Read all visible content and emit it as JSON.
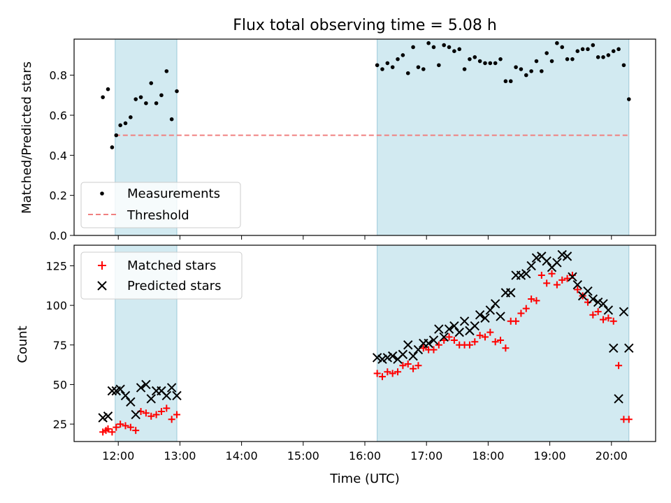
{
  "chart_data": [
    {
      "type": "scatter",
      "title": "Flux total observing time = 5.08 h",
      "xlabel": "",
      "ylabel": "Matched/Predicted stars",
      "ylim": [
        0.0,
        0.98
      ],
      "yticks": [
        0.0,
        0.2,
        0.4,
        0.6,
        0.8
      ],
      "ytick_labels": [
        "0.0",
        "0.2",
        "0.4",
        "0.6",
        "0.8"
      ],
      "xlim": [
        "11:17",
        "20:43"
      ],
      "shaded_regions": [
        [
          "11:57",
          "12:57"
        ],
        [
          "16:12",
          "20:17"
        ]
      ],
      "shade_color": "#add8e6",
      "threshold": 0.5,
      "legend": {
        "placement": "lower-left"
      },
      "series": [
        {
          "name": "Measurements",
          "marker": "dot",
          "color": "#000000",
          "x": [
            "11:45",
            "11:50",
            "11:54",
            "11:58",
            "12:02",
            "12:07",
            "12:12",
            "12:17",
            "12:22",
            "12:27",
            "12:32",
            "12:37",
            "12:42",
            "12:47",
            "12:52",
            "12:57",
            "16:12",
            "16:17",
            "16:22",
            "16:27",
            "16:32",
            "16:37",
            "16:42",
            "16:47",
            "16:52",
            "16:57",
            "17:02",
            "17:07",
            "17:12",
            "17:17",
            "17:22",
            "17:27",
            "17:32",
            "17:37",
            "17:42",
            "17:47",
            "17:52",
            "17:57",
            "18:02",
            "18:07",
            "18:12",
            "18:17",
            "18:22",
            "18:27",
            "18:32",
            "18:37",
            "18:42",
            "18:47",
            "18:52",
            "18:57",
            "19:02",
            "19:07",
            "19:12",
            "19:17",
            "19:22",
            "19:27",
            "19:32",
            "19:37",
            "19:42",
            "19:47",
            "19:52",
            "19:57",
            "20:02",
            "20:07",
            "20:12",
            "20:17"
          ],
          "y": [
            0.69,
            0.73,
            0.44,
            0.5,
            0.55,
            0.56,
            0.59,
            0.68,
            0.69,
            0.66,
            0.76,
            0.66,
            0.7,
            0.82,
            0.58,
            0.72,
            0.85,
            0.83,
            0.86,
            0.84,
            0.88,
            0.9,
            0.81,
            0.94,
            0.84,
            0.83,
            0.96,
            0.94,
            0.85,
            0.95,
            0.94,
            0.92,
            0.93,
            0.83,
            0.88,
            0.89,
            0.87,
            0.86,
            0.86,
            0.86,
            0.88,
            0.77,
            0.77,
            0.84,
            0.83,
            0.8,
            0.82,
            0.87,
            0.82,
            0.91,
            0.87,
            0.96,
            0.94,
            0.88,
            0.88,
            0.92,
            0.93,
            0.93,
            0.95,
            0.89,
            0.89,
            0.9,
            0.92,
            0.93,
            0.85,
            0.68
          ]
        },
        {
          "name": "Threshold",
          "style": "dashed",
          "color": "#f08080",
          "x": [
            "11:57",
            "20:17"
          ],
          "y": [
            0.5,
            0.5
          ]
        }
      ]
    },
    {
      "type": "scatter",
      "title": "",
      "xlabel": "Time (UTC)",
      "ylabel": "Count",
      "ylim": [
        14,
        138
      ],
      "yticks": [
        25,
        50,
        75,
        100,
        125
      ],
      "ytick_labels": [
        "25",
        "50",
        "75",
        "100",
        "125"
      ],
      "xlim": [
        "11:17",
        "20:43"
      ],
      "xticks": [
        "12:00",
        "13:00",
        "14:00",
        "15:00",
        "16:00",
        "17:00",
        "18:00",
        "19:00",
        "20:00"
      ],
      "shaded_regions": [
        [
          "11:57",
          "12:57"
        ],
        [
          "16:12",
          "20:17"
        ]
      ],
      "shade_color": "#add8e6",
      "legend": {
        "placement": "top-left"
      },
      "series": [
        {
          "name": "Matched stars",
          "marker": "plus",
          "color": "#ff0000",
          "x": [
            "11:45",
            "11:48",
            "11:50",
            "11:54",
            "11:58",
            "12:02",
            "12:07",
            "12:12",
            "12:17",
            "12:22",
            "12:27",
            "12:32",
            "12:37",
            "12:42",
            "12:47",
            "12:52",
            "12:57",
            "16:12",
            "16:17",
            "16:22",
            "16:27",
            "16:32",
            "16:37",
            "16:42",
            "16:47",
            "16:52",
            "16:57",
            "17:02",
            "17:07",
            "17:12",
            "17:17",
            "17:22",
            "17:27",
            "17:32",
            "17:37",
            "17:42",
            "17:47",
            "17:52",
            "17:57",
            "18:02",
            "18:07",
            "18:12",
            "18:17",
            "18:22",
            "18:27",
            "18:32",
            "18:37",
            "18:42",
            "18:47",
            "18:52",
            "18:57",
            "19:02",
            "19:07",
            "19:12",
            "19:17",
            "19:22",
            "19:27",
            "19:32",
            "19:37",
            "19:42",
            "19:47",
            "19:52",
            "19:57",
            "20:02",
            "20:07",
            "20:12",
            "20:17"
          ],
          "y": [
            20,
            21,
            22,
            20,
            23,
            25,
            24,
            23,
            21,
            33,
            32,
            30,
            31,
            33,
            35,
            28,
            31,
            57,
            55,
            58,
            57,
            58,
            62,
            63,
            60,
            62,
            73,
            72,
            72,
            75,
            78,
            80,
            78,
            75,
            75,
            75,
            77,
            81,
            80,
            83,
            77,
            78,
            73,
            90,
            90,
            95,
            98,
            104,
            103,
            119,
            114,
            120,
            113,
            116,
            117,
            119,
            110,
            106,
            102,
            94,
            96,
            91,
            92,
            90,
            62,
            28,
            28
          ]
        },
        {
          "name": "Predicted stars",
          "marker": "x",
          "color": "#000000",
          "x": [
            "11:45",
            "11:50",
            "11:54",
            "11:58",
            "12:02",
            "12:07",
            "12:12",
            "12:17",
            "12:22",
            "12:27",
            "12:32",
            "12:37",
            "12:42",
            "12:47",
            "12:52",
            "12:57",
            "16:12",
            "16:17",
            "16:22",
            "16:27",
            "16:32",
            "16:37",
            "16:42",
            "16:47",
            "16:52",
            "16:57",
            "17:02",
            "17:07",
            "17:12",
            "17:17",
            "17:22",
            "17:27",
            "17:32",
            "17:37",
            "17:42",
            "17:47",
            "17:52",
            "17:57",
            "18:02",
            "18:07",
            "18:12",
            "18:17",
            "18:22",
            "18:27",
            "18:32",
            "18:37",
            "18:42",
            "18:47",
            "18:52",
            "18:57",
            "19:02",
            "19:07",
            "19:12",
            "19:17",
            "19:22",
            "19:27",
            "19:32",
            "19:37",
            "19:42",
            "19:47",
            "19:52",
            "19:57",
            "20:02",
            "20:07",
            "20:12",
            "20:17"
          ],
          "y": [
            29,
            30,
            46,
            46,
            47,
            43,
            39,
            31,
            48,
            50,
            41,
            46,
            46,
            43,
            48,
            43,
            67,
            66,
            67,
            68,
            66,
            69,
            75,
            68,
            72,
            76,
            76,
            78,
            85,
            80,
            85,
            87,
            83,
            90,
            84,
            87,
            94,
            92,
            97,
            101,
            93,
            108,
            108,
            119,
            119,
            120,
            125,
            130,
            131,
            128,
            124,
            127,
            132,
            131,
            118,
            113,
            106,
            109,
            104,
            102,
            101,
            97,
            73,
            41,
            96,
            73
          ]
        }
      ]
    }
  ]
}
